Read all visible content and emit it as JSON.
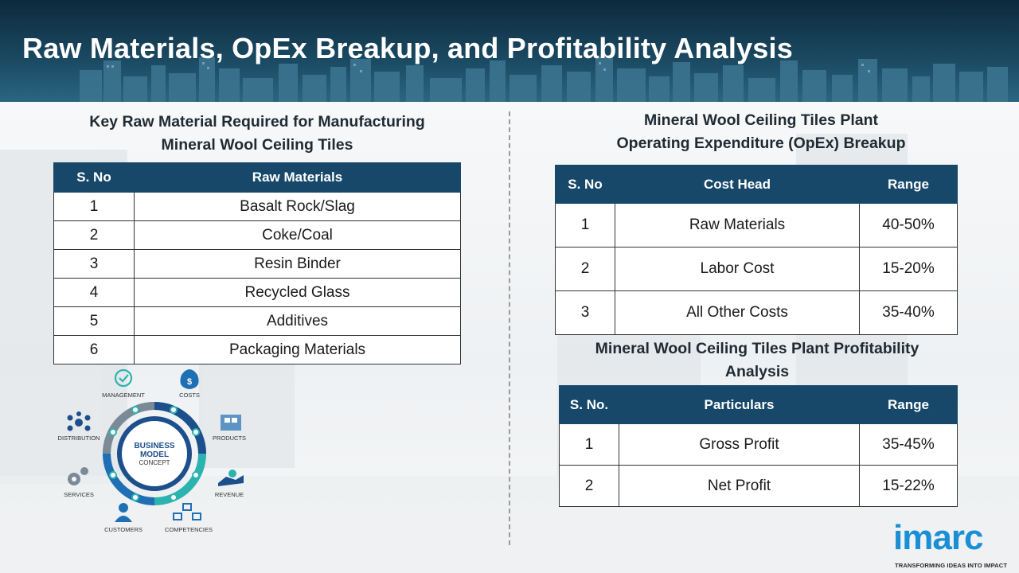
{
  "page": {
    "title": "Raw Materials, OpEx Breakup, and Profitability Analysis"
  },
  "raw_materials": {
    "title_line1": "Key Raw Material Required for Manufacturing",
    "title_line2": "Mineral Wool Ceiling Tiles",
    "headers": [
      "S. No",
      "Raw Materials"
    ],
    "rows": [
      [
        "1",
        "Basalt Rock/Slag"
      ],
      [
        "2",
        "Coke/Coal"
      ],
      [
        "3",
        "Resin Binder"
      ],
      [
        "4",
        "Recycled Glass"
      ],
      [
        "5",
        "Additives"
      ],
      [
        "6",
        "Packaging Materials"
      ]
    ]
  },
  "opex": {
    "title_line1": "Mineral Wool Ceiling Tiles Plant",
    "title_line2": "Operating Expenditure (OpEx) Breakup",
    "headers": [
      "S. No",
      "Cost Head",
      "Range"
    ],
    "rows": [
      [
        "1",
        "Raw Materials",
        "40-50%"
      ],
      [
        "2",
        "Labor Cost",
        "15-20%"
      ],
      [
        "3",
        "All Other Costs",
        "35-40%"
      ]
    ]
  },
  "profitability": {
    "title_line1": "Mineral Wool Ceiling Tiles Plant Profitability",
    "title_line2": "Analysis",
    "headers": [
      "S. No.",
      "Particulars",
      "Range"
    ],
    "rows": [
      [
        "1",
        "Gross Profit",
        "35-45%"
      ],
      [
        "2",
        "Net Profit",
        "15-22%"
      ]
    ]
  },
  "diagram": {
    "center_line1": "BUSINESS",
    "center_line2": "MODEL",
    "center_line3": "CONCEPT",
    "labels": {
      "management": "MANAGEMENT",
      "costs": "COSTS",
      "distribution": "DISTRIBUTION",
      "products": "PRODUCTS",
      "services": "SERVICES",
      "revenue": "REVENUE",
      "customers": "CUSTOMERS",
      "competencies": "COMPETENCIES"
    },
    "colors": {
      "navy": "#1d4f8c",
      "teal": "#2bb3b0",
      "blue": "#1f6fb5",
      "gray": "#7b8a96"
    }
  },
  "logo": {
    "name": "imarc",
    "tagline": "TRANSFORMING IDEAS INTO IMPACT"
  },
  "theme": {
    "header_color": "#17486a",
    "accent": "#1a8fd6"
  }
}
